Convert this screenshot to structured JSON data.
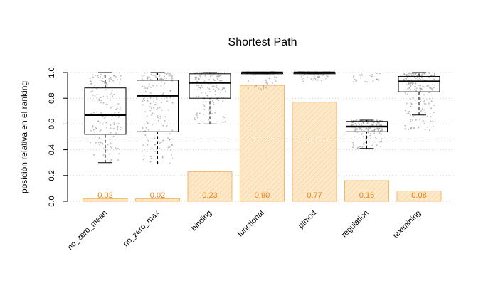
{
  "chart_data": {
    "type": "bar",
    "title": "Shortest Path",
    "ylabel": "posición relativa en el ranking",
    "xlabel": "",
    "ylim": [
      0,
      1
    ],
    "yticks": [
      0.0,
      0.2,
      0.4,
      0.6,
      0.8,
      1.0
    ],
    "ytick_labels": [
      "0.0",
      "0.2",
      "0.4",
      "0.6",
      "0.8",
      "1.0"
    ],
    "reference_line": 0.5,
    "grid": "horizontal dotted",
    "categories": [
      "no_zero_mean",
      "no_zero_max",
      "binding",
      "functional",
      "ptmod",
      "regulation",
      "textmining"
    ],
    "bar_values": [
      0.02,
      0.02,
      0.23,
      0.9,
      0.77,
      0.16,
      0.08
    ],
    "bar_labels": [
      "0.02",
      "0.02",
      "0.23",
      "0.90",
      "0.77",
      "0.16",
      "0.08"
    ],
    "boxplots": [
      {
        "whisker_low": 0.3,
        "q1": 0.52,
        "median": 0.67,
        "q3": 0.88,
        "whisker_high": 1.0
      },
      {
        "whisker_low": 0.29,
        "q1": 0.54,
        "median": 0.82,
        "q3": 0.94,
        "whisker_high": 1.0
      },
      {
        "whisker_low": 0.6,
        "q1": 0.8,
        "median": 0.92,
        "q3": 0.99,
        "whisker_high": 1.0
      },
      {
        "whisker_low": 0.99,
        "q1": 0.99,
        "median": 1.0,
        "q3": 1.0,
        "whisker_high": 1.0
      },
      {
        "whisker_low": 0.99,
        "q1": 0.99,
        "median": 1.0,
        "q3": 1.0,
        "whisker_high": 1.0
      },
      {
        "whisker_low": 0.41,
        "q1": 0.54,
        "median": 0.58,
        "q3": 0.62,
        "whisker_high": 0.63
      },
      {
        "whisker_low": 0.67,
        "q1": 0.85,
        "median": 0.93,
        "q3": 0.97,
        "whisker_high": 1.0
      }
    ],
    "outlier_ranges": [
      null,
      null,
      null,
      [
        0.87,
        0.99
      ],
      [
        0.93,
        0.99
      ],
      [
        0.92,
        1.0
      ],
      [
        0.55,
        0.67
      ]
    ],
    "colors": {
      "bar_fill": "#fde9c9",
      "bar_hatch": "#f7c98a",
      "bar_border": "#f4b868",
      "bar_label": "#e8851a",
      "points": "#8a8a8a",
      "box": "#000000",
      "grid": "#cccccc",
      "reference": "#555555"
    }
  }
}
